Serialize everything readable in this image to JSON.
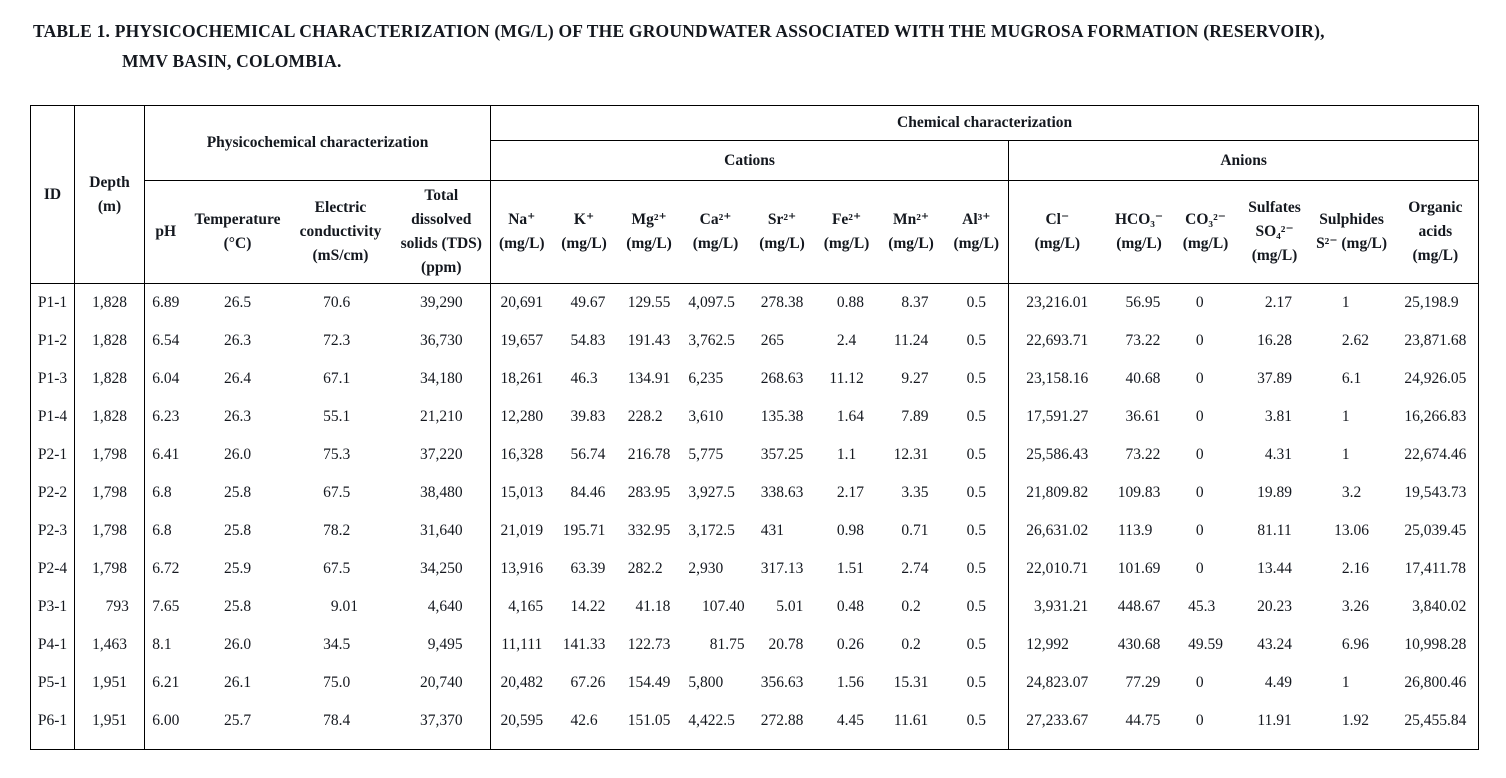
{
  "title": {
    "text": "TABLE 1. PHYSICOCHEMICAL CHARACTERIZATION (MG/L) OF THE GROUNDWATER ASSOCIATED WITH THE MUGROSA FORMATION (RESERVOIR),\nMMV BASIN, COLOMBIA."
  },
  "table": {
    "groups": {
      "physicochemical": "Physicochemical characterization",
      "chemical": "Chemical characterization",
      "cations": "Cations",
      "anions": "Anions"
    },
    "columns": [
      {
        "key": "id",
        "label": "ID"
      },
      {
        "key": "depth",
        "label": "Depth\n(m)"
      },
      {
        "key": "ph",
        "label": "pH"
      },
      {
        "key": "temperature",
        "label": "Temperature\n(°C)"
      },
      {
        "key": "conductivity",
        "label": "Electric\nconductivity\n(mS/cm)"
      },
      {
        "key": "tds",
        "label": "Total\ndissolved\nsolids (TDS)\n(ppm)"
      },
      {
        "key": "na",
        "label": "Na⁺\n(mg/L)"
      },
      {
        "key": "k",
        "label": "K⁺\n(mg/L)"
      },
      {
        "key": "mg",
        "label": "Mg²⁺\n(mg/L)"
      },
      {
        "key": "ca",
        "label": "Ca²⁺\n(mg/L)"
      },
      {
        "key": "sr",
        "label": "Sr²⁺\n(mg/L)"
      },
      {
        "key": "fe",
        "label": "Fe²⁺\n(mg/L)"
      },
      {
        "key": "mn",
        "label": "Mn²⁺\n(mg/L)"
      },
      {
        "key": "al",
        "label": "Al³⁺\n(mg/L)"
      },
      {
        "key": "cl",
        "label": "Cl⁻\n(mg/L)"
      },
      {
        "key": "hco3",
        "label": "HCO₃⁻\n(mg/L)"
      },
      {
        "key": "co3",
        "label": "CO₃²⁻\n(mg/L)"
      },
      {
        "key": "sulfates",
        "label": "Sulfates\nSO₄²⁻\n(mg/L)"
      },
      {
        "key": "sulphides",
        "label": "Sulphides\nS²⁻ (mg/L)"
      },
      {
        "key": "organic_acids",
        "label": "Organic\nacids\n(mg/L)"
      }
    ],
    "rows": [
      [
        "P1-1",
        "1,828",
        "6.89",
        "26.5",
        "70.6",
        "39,290",
        "20,691",
        "49.67",
        "129.55",
        "4,097.5",
        "278.38",
        "0.88",
        "8.37",
        "0.5",
        "23,216.01",
        "56.95",
        "0",
        "2.17",
        "1",
        "25,198.9"
      ],
      [
        "P1-2",
        "1,828",
        "6.54",
        "26.3",
        "72.3",
        "36,730",
        "19,657",
        "54.83",
        "191.43",
        "3,762.5",
        "265",
        "2.4",
        "11.24",
        "0.5",
        "22,693.71",
        "73.22",
        "0",
        "16.28",
        "2.62",
        "23,871.68"
      ],
      [
        "P1-3",
        "1,828",
        "6.04",
        "26.4",
        "67.1",
        "34,180",
        "18,261",
        "46.3",
        "134.91",
        "6,235",
        "268.63",
        "11.12",
        "9.27",
        "0.5",
        "23,158.16",
        "40.68",
        "0",
        "37.89",
        "6.1",
        "24,926.05"
      ],
      [
        "P1-4",
        "1,828",
        "6.23",
        "26.3",
        "55.1",
        "21,210",
        "12,280",
        "39.83",
        "228.2",
        "3,610",
        "135.38",
        "1.64",
        "7.89",
        "0.5",
        "17,591.27",
        "36.61",
        "0",
        "3.81",
        "1",
        "16,266.83"
      ],
      [
        "P2-1",
        "1,798",
        "6.41",
        "26.0",
        "75.3",
        "37,220",
        "16,328",
        "56.74",
        "216.78",
        "5,775",
        "357.25",
        "1.1",
        "12.31",
        "0.5",
        "25,586.43",
        "73.22",
        "0",
        "4.31",
        "1",
        "22,674.46"
      ],
      [
        "P2-2",
        "1,798",
        "6.8",
        "25.8",
        "67.5",
        "38,480",
        "15,013",
        "84.46",
        "283.95",
        "3,927.5",
        "338.63",
        "2.17",
        "3.35",
        "0.5",
        "21,809.82",
        "109.83",
        "0",
        "19.89",
        "3.2",
        "19,543.73"
      ],
      [
        "P2-3",
        "1,798",
        "6.8",
        "25.8",
        "78.2",
        "31,640",
        "21,019",
        "195.71",
        "332.95",
        "3,172.5",
        "431",
        "0.98",
        "0.71",
        "0.5",
        "26,631.02",
        "113.9",
        "0",
        "81.11",
        "13.06",
        "25,039.45"
      ],
      [
        "P2-4",
        "1,798",
        "6.72",
        "25.9",
        "67.5",
        "34,250",
        "13,916",
        "63.39",
        "282.2",
        "2,930",
        "317.13",
        "1.51",
        "2.74",
        "0.5",
        "22,010.71",
        "101.69",
        "0",
        "13.44",
        "2.16",
        "17,411.78"
      ],
      [
        "P3-1",
        "793",
        "7.65",
        "25.8",
        "9.01",
        "4,640",
        "4,165",
        "14.22",
        "41.18",
        "107.40",
        "5.01",
        "0.48",
        "0.2",
        "0.5",
        "3,931.21",
        "448.67",
        "45.3",
        "20.23",
        "3.26",
        "3,840.02"
      ],
      [
        "P4-1",
        "1,463",
        "8.1",
        "26.0",
        "34.5",
        "9,495",
        "11,111",
        "141.33",
        "122.73",
        "81.75",
        "20.78",
        "0.26",
        "0.2",
        "0.5",
        "12,992",
        "430.68",
        "49.59",
        "43.24",
        "6.96",
        "10,998.28"
      ],
      [
        "P5-1",
        "1,951",
        "6.21",
        "26.1",
        "75.0",
        "20,740",
        "20,482",
        "67.26",
        "154.49",
        "5,800",
        "356.63",
        "1.56",
        "15.31",
        "0.5",
        "24,823.07",
        "77.29",
        "0",
        "4.49",
        "1",
        "26,800.46"
      ],
      [
        "P6-1",
        "1,951",
        "6.00",
        "25.7",
        "78.4",
        "37,370",
        "20,595",
        "42.6",
        "151.05",
        "4,422.5",
        "272.88",
        "4.45",
        "11.61",
        "0.5",
        "27,233.67",
        "44.75",
        "0",
        "11.91",
        "1.92",
        "25,455.84"
      ]
    ]
  }
}
